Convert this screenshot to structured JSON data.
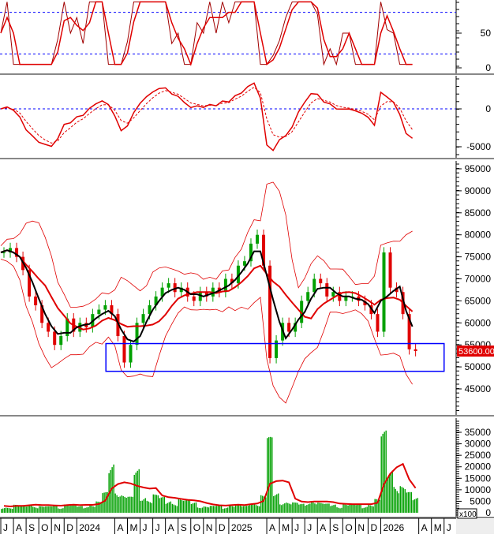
{
  "chart_data": [
    {
      "type": "line",
      "panel": "oscillator",
      "y_ticks": [
        0,
        50
      ],
      "reference_levels": [
        20,
        80
      ],
      "ylim": [
        0,
        100
      ],
      "line_color": "#e00000",
      "reference_color": "#0000ff"
    },
    {
      "type": "line",
      "panel": "momentum",
      "y_ticks": [
        -5000,
        0
      ],
      "reference_levels": [
        0
      ],
      "ylim": [
        -6000,
        4500
      ],
      "line_color": "#e00000"
    },
    {
      "type": "candlestick",
      "panel": "price",
      "y_ticks": [
        45000,
        50000,
        55000,
        60000,
        65000,
        70000,
        75000,
        80000,
        85000,
        90000,
        95000
      ],
      "ylim": [
        41000,
        97000
      ],
      "last_price_label": "53600.00",
      "colors": {
        "up": "#00a000",
        "down": "#e00000",
        "ma_fast": "#000000",
        "ma_slow": "#e00000",
        "bands": "#e00000",
        "box": "#0000ff",
        "last_price_bg": "#e00000"
      },
      "annotation_box": {
        "start": "2024-03-10",
        "end": "2026-06-01",
        "price_low": 49000,
        "price_high": 55300
      },
      "dates": [
        "2023-07-01",
        "2023-07-16",
        "2023-08-01",
        "2023-08-16",
        "2023-09-01",
        "2023-09-16",
        "2023-10-01",
        "2023-10-16",
        "2023-11-01",
        "2023-11-16",
        "2023-12-01",
        "2023-12-16",
        "2024-01-01",
        "2024-01-16",
        "2024-02-01",
        "2024-02-16",
        "2024-03-01",
        "2024-03-16",
        "2024-04-01",
        "2024-04-16",
        "2024-05-01",
        "2024-05-16",
        "2024-06-01",
        "2024-06-16",
        "2024-07-01",
        "2024-07-16",
        "2024-08-01",
        "2024-08-16",
        "2024-09-01",
        "2024-09-16",
        "2024-10-01",
        "2024-10-16",
        "2024-11-01",
        "2024-11-16",
        "2024-12-01",
        "2024-12-16",
        "2025-01-01",
        "2025-01-16",
        "2025-02-01",
        "2025-02-16",
        "2025-03-01",
        "2025-03-16",
        "2025-04-01",
        "2025-04-16",
        "2025-05-01",
        "2025-05-16",
        "2025-06-01",
        "2025-06-16",
        "2025-07-01",
        "2025-07-16",
        "2025-08-01",
        "2025-08-16",
        "2025-09-01",
        "2025-09-16",
        "2025-10-01",
        "2025-10-16",
        "2025-11-01",
        "2025-11-16",
        "2025-12-01",
        "2025-12-16",
        "2026-01-01",
        "2026-01-16",
        "2026-02-01",
        "2026-02-16",
        "2026-03-01",
        "2026-03-16"
      ],
      "close": [
        76000,
        77000,
        75000,
        72000,
        66000,
        64000,
        60000,
        58000,
        55000,
        57000,
        61000,
        58000,
        60000,
        59000,
        62000,
        63000,
        64000,
        62000,
        57000,
        51000,
        55000,
        60000,
        62000,
        64000,
        66000,
        68000,
        69000,
        67000,
        68000,
        66000,
        65000,
        67000,
        66000,
        68000,
        67000,
        70000,
        69000,
        73000,
        74000,
        78000,
        80000,
        73000,
        52000,
        56000,
        60000,
        58000,
        60000,
        65000,
        67000,
        70000,
        69000,
        66000,
        67000,
        65000,
        66000,
        66000,
        65000,
        64000,
        62000,
        58000,
        76000,
        68000,
        67000,
        62000,
        54000,
        53600
      ]
    },
    {
      "type": "bar",
      "panel": "volume",
      "y_ticks": [
        0,
        5000,
        10000,
        15000,
        20000,
        25000,
        30000,
        35000
      ],
      "ylim": [
        0,
        35000
      ],
      "unit_label": "x100",
      "bar_color": "#00a000",
      "ma_color": "#e00000",
      "values": [
        3000,
        2500,
        3500,
        3000,
        4000,
        3500,
        3000,
        2800,
        3500,
        3000,
        4000,
        3500,
        3000,
        3200,
        4000,
        5000,
        9000,
        24000,
        12000,
        8000,
        7000,
        20000,
        9000,
        6000,
        8000,
        7000,
        6000,
        5000,
        6000,
        5500,
        5000,
        3500,
        3000,
        3000,
        3500,
        3000,
        4000,
        3500,
        3000,
        4500,
        5000,
        8000,
        33000,
        9000,
        6000,
        5000,
        4500,
        4000,
        5000,
        6000,
        4500,
        4000,
        4000,
        3500,
        4000,
        3500,
        4000,
        3500,
        4000,
        6000,
        36000,
        22000,
        15000,
        12000,
        9000,
        7000
      ]
    }
  ],
  "x_axis": {
    "labels": [
      {
        "date": "2023-07",
        "label": "J"
      },
      {
        "date": "2023-08",
        "label": "A"
      },
      {
        "date": "2023-09",
        "label": "S"
      },
      {
        "date": "2023-10",
        "label": "O"
      },
      {
        "date": "2023-11",
        "label": "N"
      },
      {
        "date": "2023-12",
        "label": "D"
      },
      {
        "date": "2024-01",
        "label": "2024"
      },
      {
        "date": "2024-04",
        "label": "A"
      },
      {
        "date": "2024-05",
        "label": "M"
      },
      {
        "date": "2024-06",
        "label": "J"
      },
      {
        "date": "2024-07",
        "label": "J"
      },
      {
        "date": "2024-08",
        "label": "A"
      },
      {
        "date": "2024-09",
        "label": "S"
      },
      {
        "date": "2024-10",
        "label": "O"
      },
      {
        "date": "2024-11",
        "label": "N"
      },
      {
        "date": "2024-12",
        "label": "D"
      },
      {
        "date": "2025-01",
        "label": "2025"
      },
      {
        "date": "2025-04",
        "label": "A"
      },
      {
        "date": "2025-05",
        "label": "M"
      },
      {
        "date": "2025-06",
        "label": "J"
      },
      {
        "date": "2025-07",
        "label": "J"
      },
      {
        "date": "2025-08",
        "label": "A"
      },
      {
        "date": "2025-09",
        "label": "S"
      },
      {
        "date": "2025-10",
        "label": "O"
      },
      {
        "date": "2025-11",
        "label": "N"
      },
      {
        "date": "2025-12",
        "label": "D"
      },
      {
        "date": "2026-01",
        "label": "2026"
      },
      {
        "date": "2026-04",
        "label": "A"
      },
      {
        "date": "2026-05",
        "label": "M"
      },
      {
        "date": "2026-06",
        "label": "J"
      }
    ]
  }
}
